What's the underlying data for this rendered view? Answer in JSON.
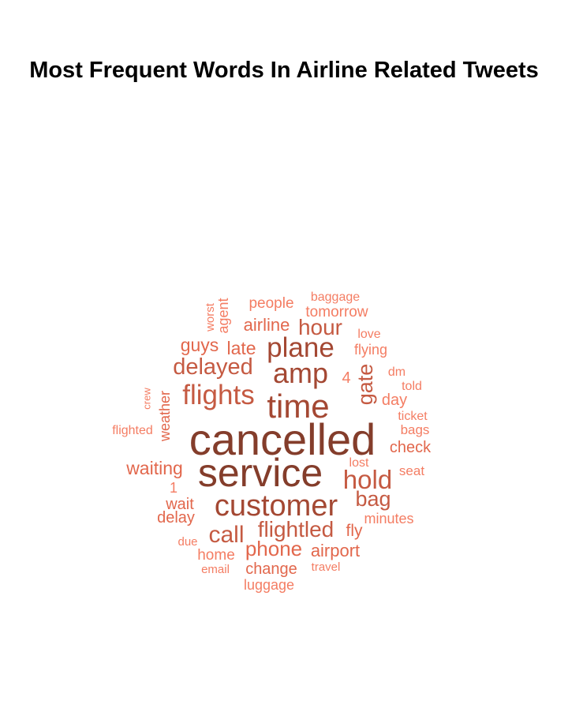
{
  "chart_data": {
    "type": "wordcloud",
    "title": "Most Frequent Words In Airline Related Tweets",
    "colors": {
      "darkest": "#843d2b",
      "dark": "#a44833",
      "medium": "#c55a42",
      "light": "#e2674c",
      "lightest": "#f47d63"
    },
    "words": [
      {
        "text": "cancelled",
        "weight": 10,
        "tone": "darkest",
        "vertical": false
      },
      {
        "text": "service",
        "weight": 9,
        "tone": "darkest",
        "vertical": false
      },
      {
        "text": "customer",
        "weight": 8,
        "tone": "dark",
        "vertical": false
      },
      {
        "text": "time",
        "weight": 7,
        "tone": "dark",
        "vertical": false
      },
      {
        "text": "plane",
        "weight": 6,
        "tone": "dark",
        "vertical": false
      },
      {
        "text": "amp",
        "weight": 6,
        "tone": "dark",
        "vertical": false
      },
      {
        "text": "flights",
        "weight": 6,
        "tone": "medium",
        "vertical": false
      },
      {
        "text": "hold",
        "weight": 6,
        "tone": "medium",
        "vertical": false
      },
      {
        "text": "delayed",
        "weight": 5,
        "tone": "medium",
        "vertical": false
      },
      {
        "text": "flightled",
        "weight": 5,
        "tone": "medium",
        "vertical": false
      },
      {
        "text": "call",
        "weight": 5,
        "tone": "medium",
        "vertical": false
      },
      {
        "text": "gate",
        "weight": 5,
        "tone": "medium",
        "vertical": true
      },
      {
        "text": "bag",
        "weight": 4,
        "tone": "medium",
        "vertical": false
      },
      {
        "text": "phone",
        "weight": 4,
        "tone": "light",
        "vertical": false
      },
      {
        "text": "hour",
        "weight": 4,
        "tone": "medium",
        "vertical": false
      },
      {
        "text": "guys",
        "weight": 3,
        "tone": "light",
        "vertical": false
      },
      {
        "text": "late",
        "weight": 3,
        "tone": "light",
        "vertical": false
      },
      {
        "text": "airline",
        "weight": 3,
        "tone": "light",
        "vertical": false
      },
      {
        "text": "airport",
        "weight": 3,
        "tone": "light",
        "vertical": false
      },
      {
        "text": "waiting",
        "weight": 3,
        "tone": "light",
        "vertical": false
      },
      {
        "text": "weather",
        "weight": 2,
        "tone": "light",
        "vertical": true
      },
      {
        "text": "check",
        "weight": 2,
        "tone": "light",
        "vertical": false
      },
      {
        "text": "fly",
        "weight": 2,
        "tone": "light",
        "vertical": false
      },
      {
        "text": "delay",
        "weight": 2,
        "tone": "light",
        "vertical": false
      },
      {
        "text": "wait",
        "weight": 2,
        "tone": "light",
        "vertical": false
      },
      {
        "text": "change",
        "weight": 2,
        "tone": "light",
        "vertical": false
      },
      {
        "text": "tomorrow",
        "weight": 2,
        "tone": "lightest",
        "vertical": false
      },
      {
        "text": "people",
        "weight": 2,
        "tone": "lightest",
        "vertical": false
      },
      {
        "text": "day",
        "weight": 2,
        "tone": "lightest",
        "vertical": false
      },
      {
        "text": "home",
        "weight": 2,
        "tone": "lightest",
        "vertical": false
      },
      {
        "text": "minutes",
        "weight": 2,
        "tone": "lightest",
        "vertical": false
      },
      {
        "text": "4",
        "weight": 2,
        "tone": "lightest",
        "vertical": false
      },
      {
        "text": "flying",
        "weight": 2,
        "tone": "lightest",
        "vertical": false
      },
      {
        "text": "agent",
        "weight": 2,
        "tone": "lightest",
        "vertical": true
      },
      {
        "text": "luggage",
        "weight": 1,
        "tone": "lightest",
        "vertical": false
      },
      {
        "text": "baggage",
        "weight": 1,
        "tone": "lightest",
        "vertical": false
      },
      {
        "text": "1",
        "weight": 1,
        "tone": "lightest",
        "vertical": false
      },
      {
        "text": "bags",
        "weight": 1,
        "tone": "lightest",
        "vertical": false
      },
      {
        "text": "seat",
        "weight": 1,
        "tone": "lightest",
        "vertical": false
      },
      {
        "text": "told",
        "weight": 1,
        "tone": "lightest",
        "vertical": false
      },
      {
        "text": "love",
        "weight": 1,
        "tone": "lightest",
        "vertical": false
      },
      {
        "text": "dm",
        "weight": 1,
        "tone": "lightest",
        "vertical": false
      },
      {
        "text": "ticket",
        "weight": 1,
        "tone": "lightest",
        "vertical": false
      },
      {
        "text": "lost",
        "weight": 1,
        "tone": "lightest",
        "vertical": false
      },
      {
        "text": "flighted",
        "weight": 1,
        "tone": "lightest",
        "vertical": false
      },
      {
        "text": "worst",
        "weight": 1,
        "tone": "lightest",
        "vertical": true
      },
      {
        "text": "crew",
        "weight": 1,
        "tone": "lightest",
        "vertical": true
      },
      {
        "text": "due",
        "weight": 1,
        "tone": "lightest",
        "vertical": false
      },
      {
        "text": "email",
        "weight": 1,
        "tone": "lightest",
        "vertical": false
      },
      {
        "text": "travel",
        "weight": 1,
        "tone": "lightest",
        "vertical": false
      }
    ]
  }
}
